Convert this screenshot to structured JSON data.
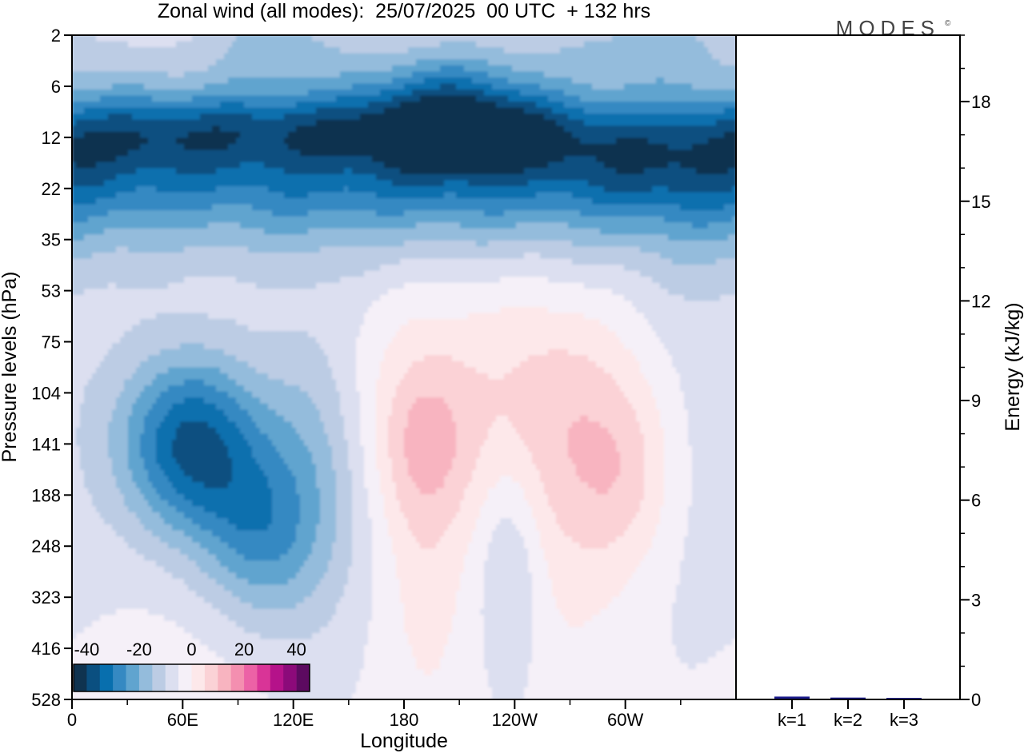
{
  "chart_data": {
    "type": "heatmap",
    "title": "Zonal wind (all modes):  25/07/2025  00 UTC  + 132 hrs",
    "logo_text": "MODES",
    "xlabel": "Longitude",
    "ylabel_left": "Pressure levels (hPa)",
    "ylabel_right": "Energy (kJ/kg)",
    "x_ticks": [
      {
        "lon": 0,
        "label": "0"
      },
      {
        "lon": 60,
        "label": "60E"
      },
      {
        "lon": 120,
        "label": "120E"
      },
      {
        "lon": 180,
        "label": "180"
      },
      {
        "lon": 240,
        "label": "120W"
      },
      {
        "lon": 300,
        "label": "60W"
      }
    ],
    "x_range": [
      0,
      360
    ],
    "pressure_levels": [
      "2",
      "6",
      "12",
      "22",
      "35",
      "53",
      "75",
      "104",
      "141",
      "188",
      "248",
      "323",
      "416",
      "528"
    ],
    "energy_axis": {
      "range": [
        0,
        20
      ],
      "major_ticks": [
        0,
        3,
        6,
        9,
        12,
        15,
        18
      ],
      "labels": [
        "0",
        "3",
        "6",
        "9",
        "12",
        "15",
        "18"
      ]
    },
    "energy_bars": {
      "categories": [
        "k=1",
        "k=2",
        "k=3"
      ],
      "values": [
        0.05,
        0.02,
        0.01
      ],
      "color": "#1a1a8c"
    },
    "colorbar": {
      "labels": [
        "-40",
        "-20",
        "0",
        "20",
        "40"
      ],
      "label_values": [
        -40,
        -20,
        0,
        20,
        40
      ],
      "min": -45,
      "max": 45,
      "colors": [
        "#0f3350",
        "#0a4f80",
        "#086fae",
        "#3589c2",
        "#60a4cf",
        "#94bcdc",
        "#bcccE4",
        "#dcdff0",
        "#f5f0f8",
        "#fde8ea",
        "#fbd2d6",
        "#f8b4c0",
        "#f48fb0",
        "#ec62a6",
        "#d93497",
        "#b5128a",
        "#8c0a7a",
        "#5c0a60"
      ]
    },
    "features": [
      {
        "lon": 180,
        "lev": 2.5,
        "sx": 420,
        "sy": 1.2,
        "v": -28
      },
      {
        "lon": 205,
        "lev": 1.4,
        "sx": 32,
        "sy": 0.9,
        "v": -16
      },
      {
        "lon": 110,
        "lev": 0.0,
        "sx": 28,
        "sy": 0.6,
        "v": -10
      },
      {
        "lon": 310,
        "lev": 0.1,
        "sx": 40,
        "sy": 0.5,
        "v": -8
      },
      {
        "lon": 30,
        "lev": 1.9,
        "sx": 45,
        "sy": 0.5,
        "v": -9
      },
      {
        "lon": 130,
        "lev": 1.8,
        "sx": 55,
        "sy": 0.5,
        "v": -10
      },
      {
        "lon": 235,
        "lev": 1.9,
        "sx": 45,
        "sy": 0.5,
        "v": -11
      },
      {
        "lon": 320,
        "lev": 2.6,
        "sx": 45,
        "sy": 0.6,
        "v": -6
      },
      {
        "lon": 65,
        "lev": 8.0,
        "sx": 28,
        "sy": 1.3,
        "v": -32
      },
      {
        "lon": 100,
        "lev": 9.8,
        "sx": 22,
        "sy": 1.2,
        "v": -16
      },
      {
        "lon": 130,
        "lev": 8.5,
        "sx": 22,
        "sy": 2.3,
        "v": -12
      },
      {
        "lon": 238,
        "lev": 10.5,
        "sx": 12,
        "sy": 1.6,
        "v": -9
      },
      {
        "lon": 340,
        "lev": 6.5,
        "sx": 35,
        "sy": 4.0,
        "v": -5
      },
      {
        "lon": 190,
        "lev": 8.0,
        "sx": 20,
        "sy": 1.2,
        "v": 11
      },
      {
        "lon": 192,
        "lev": 10.5,
        "sx": 16,
        "sy": 2.2,
        "v": 6
      },
      {
        "lon": 270,
        "lev": 7.5,
        "sx": 38,
        "sy": 1.6,
        "v": 8
      },
      {
        "lon": 300,
        "lev": 8.7,
        "sx": 20,
        "sy": 1.3,
        "v": 8
      },
      {
        "lon": 268,
        "lev": 10.0,
        "sx": 28,
        "sy": 2.2,
        "v": 5
      },
      {
        "lon": 215,
        "lev": 6.5,
        "sx": 60,
        "sy": 1.6,
        "v": 4
      },
      {
        "lon": 40,
        "lev": 12.8,
        "sx": 40,
        "sy": 1.0,
        "v": 2
      }
    ],
    "base_value": -4
  }
}
